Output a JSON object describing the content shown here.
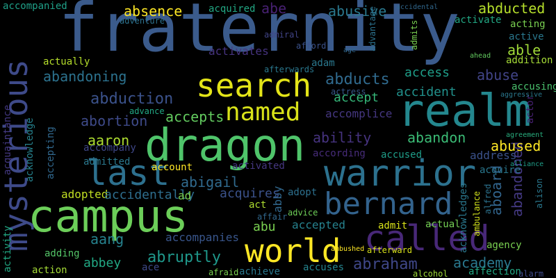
{
  "image_type": "word cloud",
  "background_color": "#000000",
  "words": [
    {
      "text": "fraternity",
      "color": "#3b5b8c"
    },
    {
      "text": "dragon",
      "color": "#4fc46a"
    },
    {
      "text": "campus",
      "color": "#6cce59"
    },
    {
      "text": "realm",
      "color": "#24878e"
    },
    {
      "text": "warrior",
      "color": "#2c718e"
    },
    {
      "text": "mysterious",
      "color": "#3e4a89"
    },
    {
      "text": "search",
      "color": "#e3e418"
    },
    {
      "text": "called",
      "color": "#482878"
    },
    {
      "text": "bernard",
      "color": "#33638d"
    },
    {
      "text": "last",
      "color": "#2d708e"
    },
    {
      "text": "world",
      "color": "#fde725"
    },
    {
      "text": "named",
      "color": "#d8e219"
    },
    {
      "text": "abduction",
      "color": "#3b528b"
    },
    {
      "text": "abducts",
      "color": "#306a8e"
    },
    {
      "text": "abandoning",
      "color": "#2c728e"
    },
    {
      "text": "abraham",
      "color": "#3f4788"
    },
    {
      "text": "academy",
      "color": "#2a788e"
    },
    {
      "text": "abandoned",
      "color": "#443983"
    },
    {
      "text": "abused",
      "color": "#fde725"
    },
    {
      "text": "abandon",
      "color": "#3bbb75"
    },
    {
      "text": "ability",
      "color": "#46337f"
    },
    {
      "text": "abortion",
      "color": "#3e4a89"
    },
    {
      "text": "accepts",
      "color": "#63cb5f"
    },
    {
      "text": "aaron",
      "color": "#addc30"
    },
    {
      "text": "abigail",
      "color": "#306a8e"
    },
    {
      "text": "absence",
      "color": "#fde725"
    },
    {
      "text": "abusive",
      "color": "#2a788e"
    },
    {
      "text": "abducted",
      "color": "#b5de2b"
    },
    {
      "text": "abe",
      "color": "#482173"
    },
    {
      "text": "able",
      "color": "#a0da39"
    },
    {
      "text": "abuse",
      "color": "#414487"
    },
    {
      "text": "access",
      "color": "#1f9e89"
    },
    {
      "text": "accident",
      "color": "#21918c"
    },
    {
      "text": "accept",
      "color": "#35b779"
    },
    {
      "text": "accomplice",
      "color": "#453781"
    },
    {
      "text": "accused",
      "color": "#1f9e89"
    },
    {
      "text": "according",
      "color": "#472c7a"
    },
    {
      "text": "address",
      "color": "#3b528b"
    },
    {
      "text": "acquire",
      "color": "#2a788e"
    },
    {
      "text": "aboard",
      "color": "#32658e"
    },
    {
      "text": "abruptly",
      "color": "#1f988b"
    },
    {
      "text": "abbey",
      "color": "#22a884"
    },
    {
      "text": "aang",
      "color": "#26828e"
    },
    {
      "text": "abu",
      "color": "#7ad151"
    },
    {
      "text": "abby",
      "color": "#31688e"
    },
    {
      "text": "accepted",
      "color": "#26828e"
    },
    {
      "text": "act",
      "color": "#addc30"
    },
    {
      "text": "actual",
      "color": "#75d054"
    },
    {
      "text": "admit",
      "color": "#d8e219"
    },
    {
      "text": "adopt",
      "color": "#2d708e"
    },
    {
      "text": "acquires",
      "color": "#3b528b"
    },
    {
      "text": "activated",
      "color": "#453781"
    },
    {
      "text": "adopted",
      "color": "#c2df23"
    },
    {
      "text": "accidentally",
      "color": "#2e6e8e"
    },
    {
      "text": "ad",
      "color": "#7ad151"
    },
    {
      "text": "account",
      "color": "#fde725"
    },
    {
      "text": "admitted",
      "color": "#2a788e"
    },
    {
      "text": "accompany",
      "color": "#3f4788"
    },
    {
      "text": "accompanies",
      "color": "#39568c"
    },
    {
      "text": "action",
      "color": "#a5db36"
    },
    {
      "text": "adding",
      "color": "#54c568"
    },
    {
      "text": "ace",
      "color": "#3e4a89"
    },
    {
      "text": "achieve",
      "color": "#2a788e"
    },
    {
      "text": "accuses",
      "color": "#25848e"
    },
    {
      "text": "affection",
      "color": "#22a884"
    },
    {
      "text": "agency",
      "color": "#7ad151"
    },
    {
      "text": "accompanied",
      "color": "#1fa088"
    },
    {
      "text": "activates",
      "color": "#46337f"
    },
    {
      "text": "acquired",
      "color": "#22a884"
    },
    {
      "text": "activate",
      "color": "#22a884"
    },
    {
      "text": "acting",
      "color": "#7ad151"
    },
    {
      "text": "active",
      "color": "#2a788e"
    },
    {
      "text": "addition",
      "color": "#a5db36"
    },
    {
      "text": "accusing",
      "color": "#4ac16d"
    },
    {
      "text": "acquaintance",
      "color": "#443983"
    },
    {
      "text": "acknowledge",
      "color": "#26828e"
    },
    {
      "text": "accepting",
      "color": "#31688e"
    },
    {
      "text": "activity",
      "color": "#22a884"
    },
    {
      "text": "actually",
      "color": "#b5de2b"
    },
    {
      "text": "adam",
      "color": "#2a788e"
    },
    {
      "text": "actress",
      "color": "#38598c"
    },
    {
      "text": "afford",
      "color": "#3b528b"
    },
    {
      "text": "admiral",
      "color": "#414487"
    },
    {
      "text": "advance",
      "color": "#22a884"
    },
    {
      "text": "adventure",
      "color": "#2c728e"
    },
    {
      "text": "afterwards",
      "color": "#2a788e"
    },
    {
      "text": "ambushed",
      "color": "#fde725"
    },
    {
      "text": "afterward",
      "color": "#d8e219"
    },
    {
      "text": "advice",
      "color": "#6ece58"
    },
    {
      "text": "affair",
      "color": "#31688e"
    },
    {
      "text": "afraid",
      "color": "#7ad151"
    },
    {
      "text": "alcohol",
      "color": "#a0da39"
    },
    {
      "text": "alarm",
      "color": "#3e4a89"
    },
    {
      "text": "acknowledges",
      "color": "#2a788e"
    },
    {
      "text": "actor",
      "color": "#482173"
    },
    {
      "text": "ambulance",
      "color": "#d2e21b"
    },
    {
      "text": "alfred",
      "color": "#2c728e"
    },
    {
      "text": "alison",
      "color": "#2a788e"
    },
    {
      "text": "alliance",
      "color": "#1f9e89"
    },
    {
      "text": "agreement",
      "color": "#29af7f"
    },
    {
      "text": "aggressive",
      "color": "#2a788e"
    },
    {
      "text": "admits",
      "color": "#7ad151"
    },
    {
      "text": "advantage",
      "color": "#2c728e"
    },
    {
      "text": "ahead",
      "color": "#63cb5f"
    },
    {
      "text": "age",
      "color": "#31688e"
    },
    {
      "text": "accidental",
      "color": "#31688e"
    }
  ]
}
